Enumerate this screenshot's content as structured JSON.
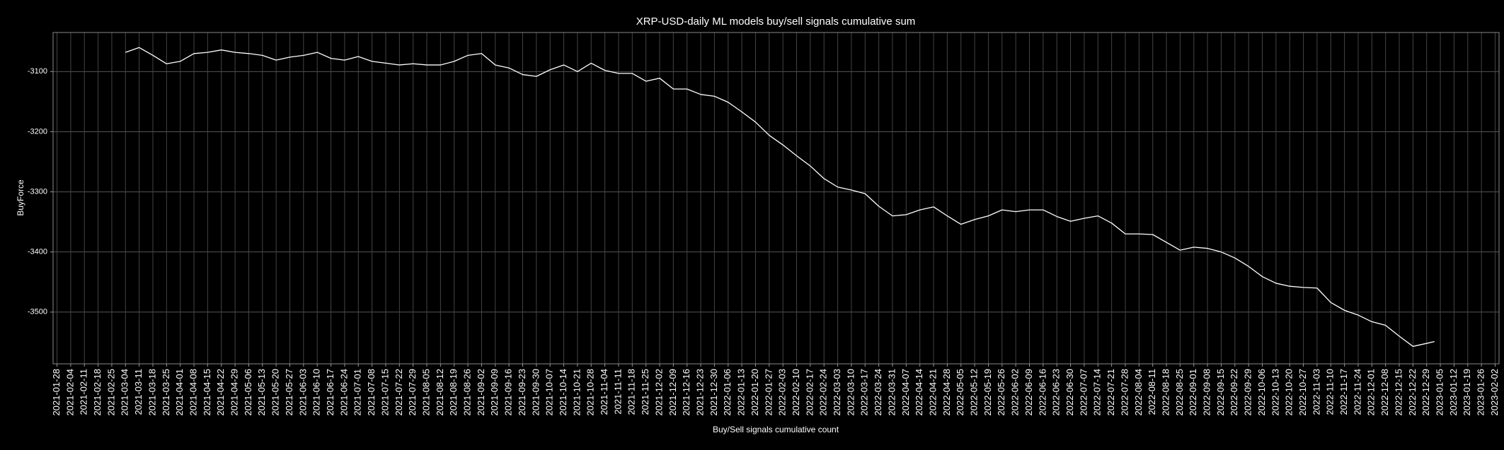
{
  "chart_data": {
    "type": "line",
    "title": "XRP-USD-daily ML models buy/sell signals cumulative sum",
    "xlabel": "Buy/Sell signals cumulative count",
    "ylabel": "BuyForce",
    "grid": true,
    "x": [
      "2021-03-04",
      "2021-03-11",
      "2021-03-18",
      "2021-03-25",
      "2021-04-01",
      "2021-04-08",
      "2021-04-15",
      "2021-04-22",
      "2021-04-29",
      "2021-05-06",
      "2021-05-13",
      "2021-05-20",
      "2021-05-27",
      "2021-06-03",
      "2021-06-10",
      "2021-06-17",
      "2021-06-24",
      "2021-07-01",
      "2021-07-08",
      "2021-07-15",
      "2021-07-22",
      "2021-07-29",
      "2021-08-05",
      "2021-08-12",
      "2021-08-19",
      "2021-08-26",
      "2021-09-02",
      "2021-09-09",
      "2021-09-16",
      "2021-09-23",
      "2021-09-30",
      "2021-10-07",
      "2021-10-14",
      "2021-10-21",
      "2021-10-28",
      "2021-11-04",
      "2021-11-11",
      "2021-11-18",
      "2021-11-25",
      "2021-12-02",
      "2021-12-09",
      "2021-12-16",
      "2021-12-23",
      "2021-12-30",
      "2022-01-06",
      "2022-01-13",
      "2022-01-20",
      "2022-01-27",
      "2022-02-03",
      "2022-02-10",
      "2022-02-17",
      "2022-02-24",
      "2022-03-03",
      "2022-03-10",
      "2022-03-17",
      "2022-03-24",
      "2022-03-31",
      "2022-04-07",
      "2022-04-14",
      "2022-04-21",
      "2022-04-28",
      "2022-05-05",
      "2022-05-12",
      "2022-05-19",
      "2022-05-26",
      "2022-06-02",
      "2022-06-09",
      "2022-06-16",
      "2022-06-23",
      "2022-06-30",
      "2022-07-07",
      "2022-07-14",
      "2022-07-21",
      "2022-07-28",
      "2022-08-04",
      "2022-08-11",
      "2022-08-18",
      "2022-08-25",
      "2022-09-01",
      "2022-09-08",
      "2022-09-15",
      "2022-09-22",
      "2022-09-29",
      "2022-10-06",
      "2022-10-13",
      "2022-10-20",
      "2022-10-27",
      "2022-11-03",
      "2022-11-10",
      "2022-11-17",
      "2022-11-24",
      "2022-12-01",
      "2022-12-08",
      "2022-12-15",
      "2022-12-22",
      "2022-12-29",
      "2023-01-02"
    ],
    "series": [
      {
        "name": "BuyForce",
        "color": "#ffffff",
        "values": [
          -3068,
          -3060,
          -3073,
          -3087,
          -3083,
          -3070,
          -3068,
          -3064,
          -3068,
          -3070,
          -3073,
          -3081,
          -3076,
          -3073,
          -3068,
          -3078,
          -3081,
          -3075,
          -3083,
          -3086,
          -3089,
          -3087,
          -3089,
          -3089,
          -3083,
          -3073,
          -3070,
          -3089,
          -3094,
          -3105,
          -3108,
          -3097,
          -3089,
          -3100,
          -3086,
          -3098,
          -3103,
          -3103,
          -3116,
          -3111,
          -3129,
          -3129,
          -3138,
          -3141,
          -3151,
          -3167,
          -3184,
          -3206,
          -3222,
          -3240,
          -3257,
          -3278,
          -3292,
          -3297,
          -3303,
          -3324,
          -3340,
          -3338,
          -3330,
          -3325,
          -3340,
          -3354,
          -3346,
          -3340,
          -3330,
          -3333,
          -3330,
          -3330,
          -3341,
          -3349,
          -3344,
          -3340,
          -3352,
          -3370,
          -3370,
          -3371,
          -3384,
          -3397,
          -3392,
          -3394,
          -3400,
          -3410,
          -3424,
          -3441,
          -3452,
          -3457,
          -3459,
          -3460,
          -3484,
          -3497,
          -3505,
          -3516,
          -3522,
          -3540,
          -3557,
          -3552,
          -3549
        ]
      }
    ],
    "xlim": [
      "2021-01-26",
      "2023-02-04"
    ],
    "xticks": [
      "2021-01-28",
      "2021-02-04",
      "2021-02-11",
      "2021-02-18",
      "2021-02-25",
      "2021-03-04",
      "2021-03-11",
      "2021-03-18",
      "2021-03-25",
      "2021-04-01",
      "2021-04-08",
      "2021-04-15",
      "2021-04-22",
      "2021-04-29",
      "2021-05-06",
      "2021-05-13",
      "2021-05-20",
      "2021-05-27",
      "2021-06-03",
      "2021-06-10",
      "2021-06-17",
      "2021-06-24",
      "2021-07-01",
      "2021-07-08",
      "2021-07-15",
      "2021-07-22",
      "2021-07-29",
      "2021-08-05",
      "2021-08-12",
      "2021-08-19",
      "2021-08-26",
      "2021-09-02",
      "2021-09-09",
      "2021-09-16",
      "2021-09-23",
      "2021-09-30",
      "2021-10-07",
      "2021-10-14",
      "2021-10-21",
      "2021-10-28",
      "2021-11-04",
      "2021-11-11",
      "2021-11-18",
      "2021-11-25",
      "2021-12-02",
      "2021-12-09",
      "2021-12-16",
      "2021-12-23",
      "2021-12-30",
      "2022-01-06",
      "2022-01-13",
      "2022-01-20",
      "2022-01-27",
      "2022-02-03",
      "2022-02-10",
      "2022-02-17",
      "2022-02-24",
      "2022-03-03",
      "2022-03-10",
      "2022-03-17",
      "2022-03-24",
      "2022-03-31",
      "2022-04-07",
      "2022-04-14",
      "2022-04-21",
      "2022-04-28",
      "2022-05-05",
      "2022-05-12",
      "2022-05-19",
      "2022-05-26",
      "2022-06-02",
      "2022-06-09",
      "2022-06-16",
      "2022-06-23",
      "2022-06-30",
      "2022-07-07",
      "2022-07-14",
      "2022-07-21",
      "2022-07-28",
      "2022-08-04",
      "2022-08-11",
      "2022-08-18",
      "2022-08-25",
      "2022-09-01",
      "2022-09-08",
      "2022-09-15",
      "2022-09-22",
      "2022-09-29",
      "2022-10-06",
      "2022-10-13",
      "2022-10-20",
      "2022-10-27",
      "2022-11-03",
      "2022-11-10",
      "2022-11-17",
      "2022-11-24",
      "2022-12-01",
      "2022-12-08",
      "2022-12-15",
      "2022-12-22",
      "2022-12-29",
      "2023-01-05",
      "2023-01-12",
      "2023-01-19",
      "2023-01-26",
      "2023-02-02"
    ],
    "ylim": [
      -3586,
      -3035
    ],
    "yticks": [
      -3500,
      -3400,
      -3300,
      -3200,
      -3100
    ]
  }
}
